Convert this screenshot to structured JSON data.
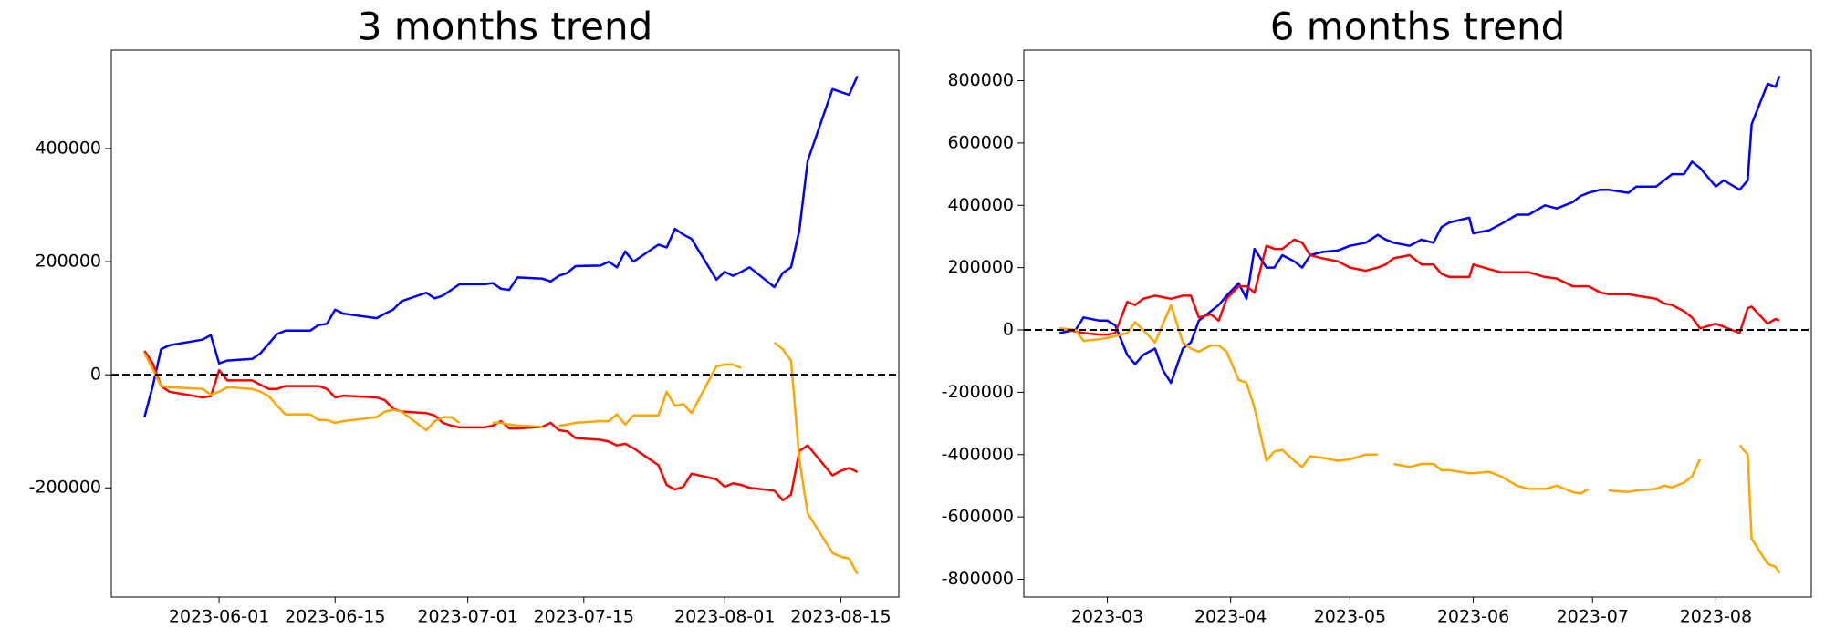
{
  "chart_data": [
    {
      "type": "line",
      "title": "3 months trend",
      "x": [
        "2023-05-23",
        "2023-05-24",
        "2023-05-25",
        "2023-05-26",
        "2023-05-30",
        "2023-05-31",
        "2023-06-01",
        "2023-06-02",
        "2023-06-05",
        "2023-06-06",
        "2023-06-07",
        "2023-06-08",
        "2023-06-09",
        "2023-06-12",
        "2023-06-13",
        "2023-06-14",
        "2023-06-15",
        "2023-06-16",
        "2023-06-20",
        "2023-06-21",
        "2023-06-22",
        "2023-06-23",
        "2023-06-26",
        "2023-06-27",
        "2023-06-28",
        "2023-06-29",
        "2023-06-30",
        "2023-07-03",
        "2023-07-04",
        "2023-07-05",
        "2023-07-06",
        "2023-07-07",
        "2023-07-10",
        "2023-07-11",
        "2023-07-12",
        "2023-07-13",
        "2023-07-14",
        "2023-07-17",
        "2023-07-18",
        "2023-07-19",
        "2023-07-20",
        "2023-07-21",
        "2023-07-24",
        "2023-07-25",
        "2023-07-26",
        "2023-07-27",
        "2023-07-28",
        "2023-07-31",
        "2023-08-01",
        "2023-08-02",
        "2023-08-03",
        "2023-08-04",
        "2023-08-07",
        "2023-08-08",
        "2023-08-09",
        "2023-08-10",
        "2023-08-11",
        "2023-08-14",
        "2023-08-15",
        "2023-08-16",
        "2023-08-17"
      ],
      "series": [
        {
          "color": "#0000ff",
          "values": [
            -75000,
            -20000,
            45000,
            52000,
            62000,
            70000,
            20000,
            25000,
            28000,
            38000,
            55000,
            72000,
            78000,
            78000,
            88000,
            90000,
            115000,
            108000,
            100000,
            108000,
            115000,
            130000,
            145000,
            135000,
            140000,
            150000,
            160000,
            160000,
            162000,
            152000,
            150000,
            172000,
            170000,
            165000,
            175000,
            180000,
            192000,
            193000,
            200000,
            190000,
            218000,
            200000,
            230000,
            225000,
            258000,
            248000,
            240000,
            168000,
            182000,
            175000,
            182000,
            190000,
            155000,
            180000,
            190000,
            255000,
            378000,
            505000,
            500000,
            495000,
            528000
          ]
        },
        {
          "color": "#ff0000",
          "values": [
            42000,
            20000,
            -20000,
            -30000,
            -40000,
            -38000,
            8000,
            -10000,
            -10000,
            -18000,
            -25000,
            -25000,
            -20000,
            -20000,
            -20000,
            -25000,
            -40000,
            -37000,
            -40000,
            -45000,
            -60000,
            -65000,
            -68000,
            -72000,
            -85000,
            -90000,
            -93000,
            -93000,
            -90000,
            -82000,
            -95000,
            -95000,
            -92000,
            -85000,
            -98000,
            -100000,
            -112000,
            -115000,
            -118000,
            -125000,
            -122000,
            -130000,
            -160000,
            -195000,
            -203000,
            -198000,
            -175000,
            -185000,
            -198000,
            -192000,
            -195000,
            -200000,
            -205000,
            -222000,
            -212000,
            -135000,
            -125000,
            -178000,
            -170000,
            -165000,
            -172000
          ]
        },
        {
          "color": "#ffa500",
          "values": [
            38000,
            10000,
            -20000,
            -22000,
            -25000,
            -35000,
            -30000,
            -22000,
            -25000,
            -30000,
            -38000,
            -55000,
            -70000,
            -70000,
            -80000,
            -80000,
            -85000,
            -82000,
            -75000,
            -65000,
            -62000,
            -65000,
            -98000,
            -82000,
            -75000,
            -75000,
            -85000,
            null,
            -85000,
            -85000,
            -88000,
            -90000,
            -92000,
            null,
            -90000,
            -88000,
            -85000,
            -82000,
            -82000,
            -70000,
            -88000,
            -72000,
            -72000,
            -30000,
            -55000,
            -52000,
            -68000,
            15000,
            18000,
            18000,
            12000,
            null,
            57000,
            45000,
            25000,
            -150000,
            -245000,
            -315000,
            -322000,
            -325000,
            -352000
          ]
        }
      ],
      "xlim": [
        "2023-05-19",
        "2023-08-22"
      ],
      "xticks": [
        "2023-06-01",
        "2023-06-15",
        "2023-07-01",
        "2023-07-15",
        "2023-08-01",
        "2023-08-15"
      ],
      "ylim": [
        -393000,
        574000
      ],
      "yticks": [
        -200000,
        0,
        200000,
        400000
      ],
      "hline": 0
    },
    {
      "type": "line",
      "title": "6 months trend",
      "x": [
        "2023-02-17",
        "2023-02-21",
        "2023-02-23",
        "2023-02-27",
        "2023-03-01",
        "2023-03-03",
        "2023-03-06",
        "2023-03-08",
        "2023-03-10",
        "2023-03-13",
        "2023-03-15",
        "2023-03-17",
        "2023-03-20",
        "2023-03-22",
        "2023-03-24",
        "2023-03-27",
        "2023-03-29",
        "2023-03-31",
        "2023-04-03",
        "2023-04-05",
        "2023-04-07",
        "2023-04-10",
        "2023-04-12",
        "2023-04-14",
        "2023-04-17",
        "2023-04-19",
        "2023-04-21",
        "2023-04-24",
        "2023-04-28",
        "2023-05-01",
        "2023-05-05",
        "2023-05-08",
        "2023-05-10",
        "2023-05-12",
        "2023-05-16",
        "2023-05-19",
        "2023-05-22",
        "2023-05-24",
        "2023-05-26",
        "2023-05-31",
        "2023-06-01",
        "2023-06-05",
        "2023-06-08",
        "2023-06-12",
        "2023-06-15",
        "2023-06-19",
        "2023-06-22",
        "2023-06-26",
        "2023-06-28",
        "2023-06-30",
        "2023-07-03",
        "2023-07-05",
        "2023-07-10",
        "2023-07-12",
        "2023-07-17",
        "2023-07-19",
        "2023-07-21",
        "2023-07-24",
        "2023-07-26",
        "2023-07-28",
        "2023-08-01",
        "2023-08-03",
        "2023-08-07",
        "2023-08-09",
        "2023-08-10",
        "2023-08-14",
        "2023-08-16",
        "2023-08-17"
      ],
      "series": [
        {
          "color": "#0000ff",
          "values": [
            -10000,
            0,
            40000,
            30000,
            30000,
            15000,
            -80000,
            -110000,
            -80000,
            -60000,
            -130000,
            -170000,
            -60000,
            -40000,
            30000,
            60000,
            80000,
            110000,
            150000,
            100000,
            260000,
            200000,
            200000,
            240000,
            220000,
            200000,
            240000,
            250000,
            255000,
            270000,
            280000,
            305000,
            290000,
            280000,
            270000,
            290000,
            280000,
            330000,
            345000,
            360000,
            310000,
            320000,
            340000,
            370000,
            370000,
            400000,
            390000,
            410000,
            430000,
            440000,
            450000,
            450000,
            440000,
            460000,
            460000,
            480000,
            500000,
            500000,
            540000,
            520000,
            460000,
            480000,
            450000,
            480000,
            660000,
            790000,
            780000,
            815000
          ]
        },
        {
          "color": "#ff0000",
          "values": [
            5000,
            -5000,
            -10000,
            -15000,
            -15000,
            -10000,
            90000,
            80000,
            100000,
            110000,
            105000,
            100000,
            110000,
            110000,
            40000,
            50000,
            30000,
            100000,
            140000,
            140000,
            120000,
            270000,
            260000,
            260000,
            290000,
            280000,
            240000,
            230000,
            220000,
            200000,
            190000,
            200000,
            210000,
            230000,
            240000,
            210000,
            210000,
            180000,
            170000,
            170000,
            210000,
            195000,
            185000,
            185000,
            185000,
            170000,
            165000,
            140000,
            140000,
            140000,
            120000,
            115000,
            115000,
            110000,
            100000,
            85000,
            80000,
            60000,
            40000,
            5000,
            20000,
            10000,
            -10000,
            70000,
            75000,
            20000,
            35000,
            30000
          ]
        },
        {
          "color": "#ffa500",
          "values": [
            5000,
            0,
            -35000,
            -30000,
            -25000,
            -20000,
            -10000,
            25000,
            0,
            -40000,
            20000,
            80000,
            -40000,
            -60000,
            -70000,
            -50000,
            -50000,
            -70000,
            -160000,
            -170000,
            -250000,
            -420000,
            -390000,
            -385000,
            -420000,
            -440000,
            -405000,
            -410000,
            -420000,
            -415000,
            -400000,
            -400000,
            null,
            -430000,
            -440000,
            -430000,
            -430000,
            -450000,
            -450000,
            -460000,
            -460000,
            -455000,
            -470000,
            -500000,
            -510000,
            -510000,
            -500000,
            -520000,
            -525000,
            -510000,
            null,
            -515000,
            -520000,
            -515000,
            -510000,
            -500000,
            -505000,
            -490000,
            -470000,
            -415000,
            null,
            null,
            -370000,
            -400000,
            -670000,
            -750000,
            -760000,
            -780000
          ]
        }
      ],
      "xlim": [
        "2023-02-08",
        "2023-08-25"
      ],
      "xticks": [
        {
          "value": "2023-03-01",
          "label": "2023-03"
        },
        {
          "value": "2023-04-01",
          "label": "2023-04"
        },
        {
          "value": "2023-05-01",
          "label": "2023-05"
        },
        {
          "value": "2023-06-01",
          "label": "2023-06"
        },
        {
          "value": "2023-07-01",
          "label": "2023-07"
        },
        {
          "value": "2023-08-01",
          "label": "2023-08"
        }
      ],
      "ylim": [
        -857000,
        898000
      ],
      "yticks": [
        -800000,
        -600000,
        -400000,
        -200000,
        0,
        200000,
        400000,
        600000,
        800000
      ],
      "hline": 0
    }
  ]
}
